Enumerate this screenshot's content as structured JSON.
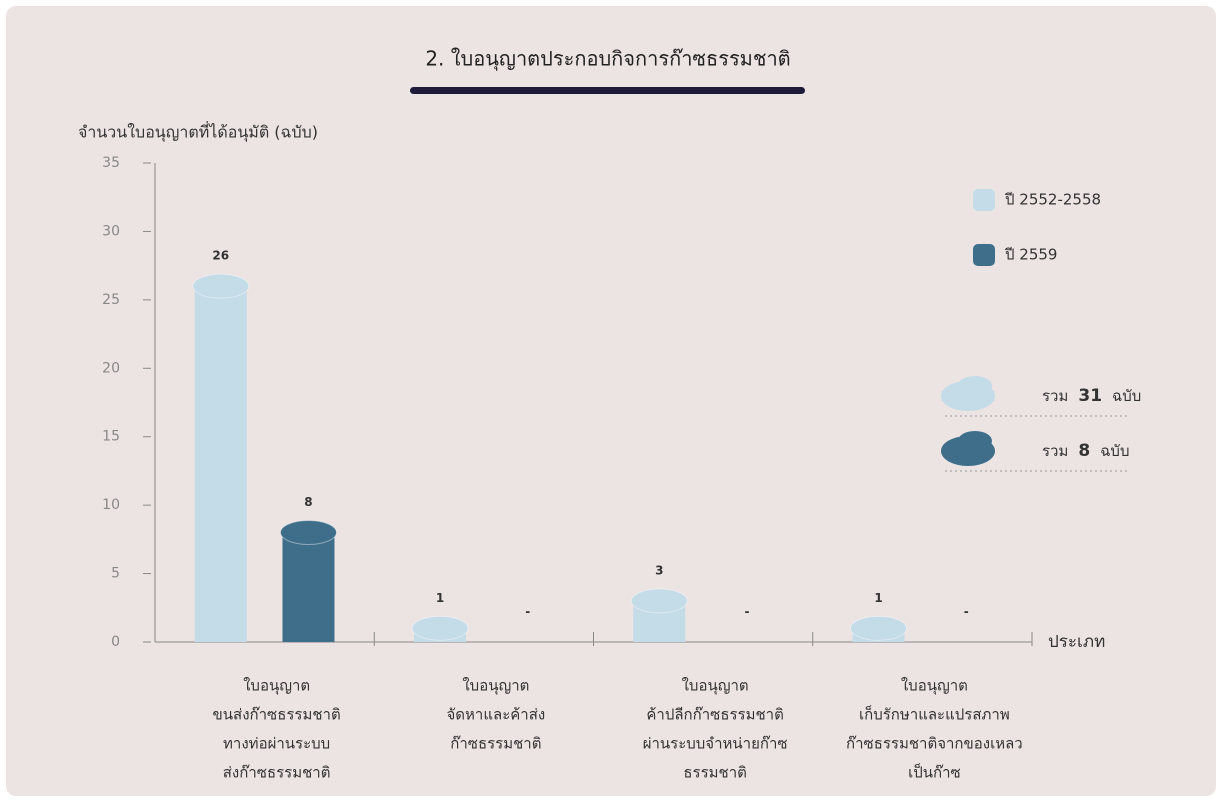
{
  "chart_data": {
    "type": "bar",
    "title": "2. ใบอนุญาตประกอบกิจการก๊าซธรรมชาติ",
    "y_label": "จำนวนใบอนุญาตที่ได้อนุมัติ (ฉบับ)",
    "x_label": "ประเภท",
    "categories": [
      [
        "ใบอนุญาต",
        "ขนส่งก๊าซธรรมชาติ",
        "ทางท่อผ่านระบบ",
        "ส่งก๊าซธรรมชาติ"
      ],
      [
        "ใบอนุญาต",
        "จัดหาและค้าส่ง",
        "ก๊าซธรรมชาติ"
      ],
      [
        "ใบอนุญาต",
        "ค้าปลีกก๊าซธรรมชาติ",
        "ผ่านระบบจำหน่ายก๊าซ",
        "ธรรมชาติ"
      ],
      [
        "ใบอนุญาต",
        "เก็บรักษาและแปรสภาพ",
        "ก๊าซธรรมชาติจากของเหลว",
        "เป็นก๊าซ"
      ]
    ],
    "series": [
      {
        "name": "ปี 2552-2558",
        "color": "#c4dbe8",
        "values": [
          26,
          1,
          3,
          1
        ]
      },
      {
        "name": "ปี 2559",
        "color": "#3e6e89",
        "values": [
          8,
          0,
          0,
          0
        ],
        "value_labels": [
          "8",
          "-",
          "-",
          "-"
        ]
      }
    ],
    "totals": [
      {
        "prefix": "รวม",
        "value": 31,
        "unit": "ฉบับ"
      },
      {
        "prefix": "รวม",
        "value": 8,
        "unit": "ฉบับ"
      }
    ],
    "ylim": [
      0,
      35
    ],
    "yticks": [
      0,
      5,
      10,
      15,
      20,
      25,
      30,
      35
    ],
    "legend": "upper right"
  }
}
